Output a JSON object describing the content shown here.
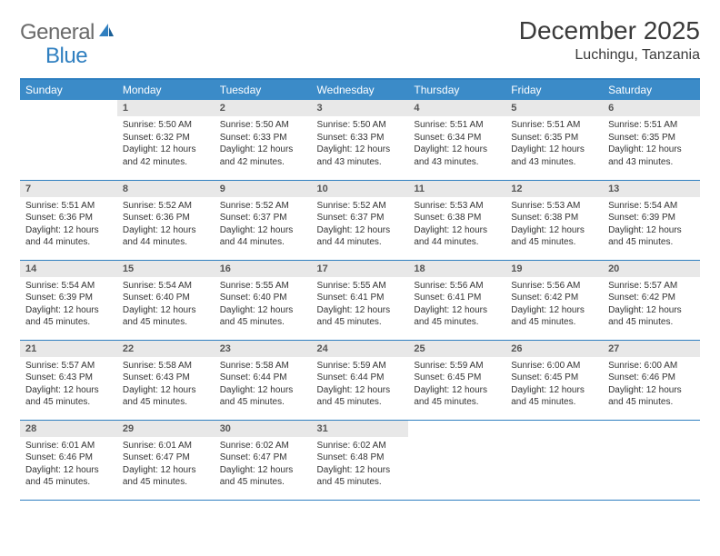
{
  "brand": {
    "general": "General",
    "blue": "Blue"
  },
  "title": "December 2025",
  "location": "Luchingu, Tanzania",
  "colors": {
    "header_bg": "#3b8bc8",
    "rule": "#2f7fc0",
    "daynum_bg": "#e8e8e8",
    "text": "#333333",
    "title_text": "#3a3a3a",
    "logo_gray": "#6a6a6a"
  },
  "weekdays": [
    "Sunday",
    "Monday",
    "Tuesday",
    "Wednesday",
    "Thursday",
    "Friday",
    "Saturday"
  ],
  "weeks": [
    [
      null,
      {
        "n": "1",
        "sr": "Sunrise: 5:50 AM",
        "ss": "Sunset: 6:32 PM",
        "dl": "Daylight: 12 hours and 42 minutes."
      },
      {
        "n": "2",
        "sr": "Sunrise: 5:50 AM",
        "ss": "Sunset: 6:33 PM",
        "dl": "Daylight: 12 hours and 42 minutes."
      },
      {
        "n": "3",
        "sr": "Sunrise: 5:50 AM",
        "ss": "Sunset: 6:33 PM",
        "dl": "Daylight: 12 hours and 43 minutes."
      },
      {
        "n": "4",
        "sr": "Sunrise: 5:51 AM",
        "ss": "Sunset: 6:34 PM",
        "dl": "Daylight: 12 hours and 43 minutes."
      },
      {
        "n": "5",
        "sr": "Sunrise: 5:51 AM",
        "ss": "Sunset: 6:35 PM",
        "dl": "Daylight: 12 hours and 43 minutes."
      },
      {
        "n": "6",
        "sr": "Sunrise: 5:51 AM",
        "ss": "Sunset: 6:35 PM",
        "dl": "Daylight: 12 hours and 43 minutes."
      }
    ],
    [
      {
        "n": "7",
        "sr": "Sunrise: 5:51 AM",
        "ss": "Sunset: 6:36 PM",
        "dl": "Daylight: 12 hours and 44 minutes."
      },
      {
        "n": "8",
        "sr": "Sunrise: 5:52 AM",
        "ss": "Sunset: 6:36 PM",
        "dl": "Daylight: 12 hours and 44 minutes."
      },
      {
        "n": "9",
        "sr": "Sunrise: 5:52 AM",
        "ss": "Sunset: 6:37 PM",
        "dl": "Daylight: 12 hours and 44 minutes."
      },
      {
        "n": "10",
        "sr": "Sunrise: 5:52 AM",
        "ss": "Sunset: 6:37 PM",
        "dl": "Daylight: 12 hours and 44 minutes."
      },
      {
        "n": "11",
        "sr": "Sunrise: 5:53 AM",
        "ss": "Sunset: 6:38 PM",
        "dl": "Daylight: 12 hours and 44 minutes."
      },
      {
        "n": "12",
        "sr": "Sunrise: 5:53 AM",
        "ss": "Sunset: 6:38 PM",
        "dl": "Daylight: 12 hours and 45 minutes."
      },
      {
        "n": "13",
        "sr": "Sunrise: 5:54 AM",
        "ss": "Sunset: 6:39 PM",
        "dl": "Daylight: 12 hours and 45 minutes."
      }
    ],
    [
      {
        "n": "14",
        "sr": "Sunrise: 5:54 AM",
        "ss": "Sunset: 6:39 PM",
        "dl": "Daylight: 12 hours and 45 minutes."
      },
      {
        "n": "15",
        "sr": "Sunrise: 5:54 AM",
        "ss": "Sunset: 6:40 PM",
        "dl": "Daylight: 12 hours and 45 minutes."
      },
      {
        "n": "16",
        "sr": "Sunrise: 5:55 AM",
        "ss": "Sunset: 6:40 PM",
        "dl": "Daylight: 12 hours and 45 minutes."
      },
      {
        "n": "17",
        "sr": "Sunrise: 5:55 AM",
        "ss": "Sunset: 6:41 PM",
        "dl": "Daylight: 12 hours and 45 minutes."
      },
      {
        "n": "18",
        "sr": "Sunrise: 5:56 AM",
        "ss": "Sunset: 6:41 PM",
        "dl": "Daylight: 12 hours and 45 minutes."
      },
      {
        "n": "19",
        "sr": "Sunrise: 5:56 AM",
        "ss": "Sunset: 6:42 PM",
        "dl": "Daylight: 12 hours and 45 minutes."
      },
      {
        "n": "20",
        "sr": "Sunrise: 5:57 AM",
        "ss": "Sunset: 6:42 PM",
        "dl": "Daylight: 12 hours and 45 minutes."
      }
    ],
    [
      {
        "n": "21",
        "sr": "Sunrise: 5:57 AM",
        "ss": "Sunset: 6:43 PM",
        "dl": "Daylight: 12 hours and 45 minutes."
      },
      {
        "n": "22",
        "sr": "Sunrise: 5:58 AM",
        "ss": "Sunset: 6:43 PM",
        "dl": "Daylight: 12 hours and 45 minutes."
      },
      {
        "n": "23",
        "sr": "Sunrise: 5:58 AM",
        "ss": "Sunset: 6:44 PM",
        "dl": "Daylight: 12 hours and 45 minutes."
      },
      {
        "n": "24",
        "sr": "Sunrise: 5:59 AM",
        "ss": "Sunset: 6:44 PM",
        "dl": "Daylight: 12 hours and 45 minutes."
      },
      {
        "n": "25",
        "sr": "Sunrise: 5:59 AM",
        "ss": "Sunset: 6:45 PM",
        "dl": "Daylight: 12 hours and 45 minutes."
      },
      {
        "n": "26",
        "sr": "Sunrise: 6:00 AM",
        "ss": "Sunset: 6:45 PM",
        "dl": "Daylight: 12 hours and 45 minutes."
      },
      {
        "n": "27",
        "sr": "Sunrise: 6:00 AM",
        "ss": "Sunset: 6:46 PM",
        "dl": "Daylight: 12 hours and 45 minutes."
      }
    ],
    [
      {
        "n": "28",
        "sr": "Sunrise: 6:01 AM",
        "ss": "Sunset: 6:46 PM",
        "dl": "Daylight: 12 hours and 45 minutes."
      },
      {
        "n": "29",
        "sr": "Sunrise: 6:01 AM",
        "ss": "Sunset: 6:47 PM",
        "dl": "Daylight: 12 hours and 45 minutes."
      },
      {
        "n": "30",
        "sr": "Sunrise: 6:02 AM",
        "ss": "Sunset: 6:47 PM",
        "dl": "Daylight: 12 hours and 45 minutes."
      },
      {
        "n": "31",
        "sr": "Sunrise: 6:02 AM",
        "ss": "Sunset: 6:48 PM",
        "dl": "Daylight: 12 hours and 45 minutes."
      },
      null,
      null,
      null
    ]
  ]
}
